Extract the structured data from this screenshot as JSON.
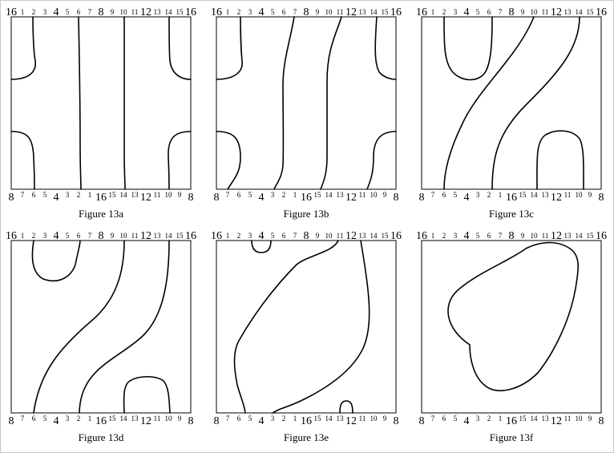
{
  "top_labels": [
    "16",
    "1",
    "2",
    "3",
    "4",
    "5",
    "6",
    "7",
    "8",
    "9",
    "10",
    "11",
    "12",
    "13",
    "14",
    "15",
    "16"
  ],
  "bottom_labels": [
    "8",
    "7",
    "6",
    "5",
    "4",
    "3",
    "2",
    "1",
    "16",
    "15",
    "14",
    "13",
    "12",
    "11",
    "10",
    "9",
    "8"
  ],
  "major_labels": [
    "16",
    "4",
    "8",
    "12"
  ],
  "panels": [
    {
      "caption": "Figure 13a"
    },
    {
      "caption": "Figure 13b"
    },
    {
      "caption": "Figure 13c"
    },
    {
      "caption": "Figure 13d"
    },
    {
      "caption": "Figure 13e"
    },
    {
      "caption": "Figure 13f"
    }
  ]
}
